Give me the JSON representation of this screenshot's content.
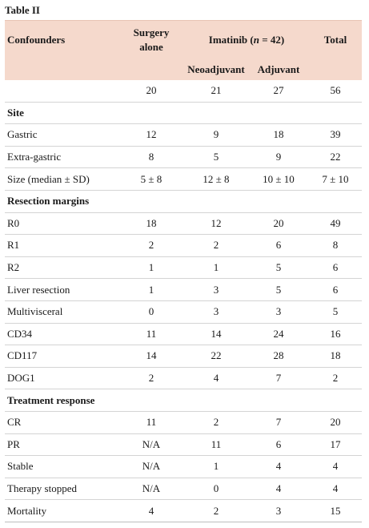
{
  "caption": "Table II",
  "header": {
    "confounders": "Confounders",
    "surgery_line1": "Surgery",
    "surgery_line2": "alone",
    "imatinib_prefix": "Imatinib (",
    "imatinib_n": "n",
    "imatinib_suffix": " = 42)",
    "total": "Total",
    "neoadjuvant": "Neoadjuvant",
    "adjuvant": "Adjuvant"
  },
  "rows": [
    {
      "type": "data",
      "label": "",
      "values": [
        "20",
        "21",
        "27",
        "56"
      ]
    },
    {
      "type": "section",
      "label": "Site"
    },
    {
      "type": "data",
      "label": "Gastric",
      "values": [
        "12",
        "9",
        "18",
        "39"
      ]
    },
    {
      "type": "data",
      "label": "Extra-gastric",
      "values": [
        "8",
        "5",
        "9",
        "22"
      ]
    },
    {
      "type": "data",
      "label": "Size (median ± SD)",
      "values": [
        "5 ± 8",
        "12 ± 8",
        "10 ± 10",
        "7 ± 10"
      ]
    },
    {
      "type": "section",
      "label": "Resection margins"
    },
    {
      "type": "data",
      "label": "R0",
      "values": [
        "18",
        "12",
        "20",
        "49"
      ]
    },
    {
      "type": "data",
      "label": "R1",
      "values": [
        "2",
        "2",
        "6",
        "8"
      ]
    },
    {
      "type": "data",
      "label": "R2",
      "values": [
        "1",
        "1",
        "5",
        "6"
      ]
    },
    {
      "type": "data",
      "label": "Liver resection",
      "values": [
        "1",
        "3",
        "5",
        "6"
      ]
    },
    {
      "type": "data",
      "label": "Multivisceral",
      "values": [
        "0",
        "3",
        "3",
        "5"
      ]
    },
    {
      "type": "data",
      "label": "CD34",
      "values": [
        "11",
        "14",
        "24",
        "16"
      ]
    },
    {
      "type": "data",
      "label": "CD117",
      "values": [
        "14",
        "22",
        "28",
        "18"
      ]
    },
    {
      "type": "data",
      "label": "DOG1",
      "values": [
        "2",
        "4",
        "7",
        "2"
      ]
    },
    {
      "type": "section",
      "label": "Treatment response"
    },
    {
      "type": "data",
      "label": "CR",
      "values": [
        "11",
        "2",
        "7",
        "20"
      ]
    },
    {
      "type": "data",
      "label": "PR",
      "values": [
        "N/A",
        "11",
        "6",
        "17"
      ]
    },
    {
      "type": "data",
      "label": "Stable",
      "values": [
        "N/A",
        "1",
        "4",
        "4"
      ]
    },
    {
      "type": "data",
      "label": "Therapy stopped",
      "values": [
        "N/A",
        "0",
        "4",
        "4"
      ]
    },
    {
      "type": "data",
      "label": "Mortality",
      "values": [
        "4",
        "2",
        "3",
        "15"
      ]
    }
  ]
}
